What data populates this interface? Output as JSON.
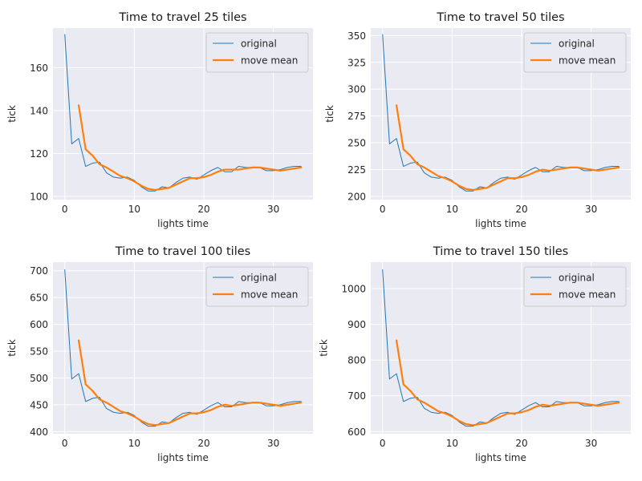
{
  "colors": {
    "background": "#eaeaf2",
    "grid": "#ffffff",
    "original": "#1f77b4",
    "mean": "#ff7f0e"
  },
  "chart_data": [
    {
      "type": "line",
      "title": "Time to travel 25 tiles",
      "xlabel": "lights time",
      "ylabel": "tick",
      "xlim": [
        -1.7,
        35.7
      ],
      "ylim": [
        98.5,
        178.5
      ],
      "xticks": [
        0,
        10,
        20,
        30
      ],
      "yticks": [
        100,
        120,
        140,
        160
      ],
      "legend": "top-right",
      "grid": true,
      "series": [
        {
          "name": "original",
          "x": [
            0,
            1,
            2,
            3,
            4,
            5,
            6,
            7,
            8,
            9,
            10,
            11,
            12,
            13,
            14,
            15,
            16,
            17,
            18,
            19,
            20,
            21,
            22,
            23,
            24,
            25,
            26,
            27,
            28,
            29,
            30,
            31,
            32,
            33,
            34
          ],
          "values": [
            175.5,
            124.5,
            127,
            114,
            115.5,
            116,
            111,
            109,
            108.5,
            109,
            107.5,
            104.5,
            102.5,
            102.5,
            104.5,
            104,
            106.5,
            108.5,
            109,
            108,
            110,
            112,
            113.5,
            111.5,
            111.5,
            114,
            113.5,
            113.5,
            113.5,
            112,
            112,
            112.5,
            113.5,
            114,
            114
          ]
        },
        {
          "name": "move mean",
          "x": [
            2,
            3,
            4,
            5,
            6,
            7,
            8,
            9,
            10,
            11,
            12,
            13,
            14,
            15,
            16,
            17,
            18,
            19,
            20,
            21,
            22,
            23,
            24,
            25,
            26,
            27,
            28,
            29,
            30,
            31,
            32,
            33,
            34
          ],
          "values": [
            142.5,
            122,
            119,
            115,
            113.5,
            111.5,
            109.5,
            108.5,
            107,
            105,
            103.5,
            103,
            103.5,
            104,
            105.5,
            107,
            108.5,
            108.5,
            109,
            110,
            111.5,
            112.5,
            112.5,
            112.5,
            113,
            113.5,
            113.5,
            113,
            112.5,
            112,
            112.5,
            113,
            113.5
          ]
        }
      ]
    },
    {
      "type": "line",
      "title": "Time to travel 50 tiles",
      "xlabel": "lights time",
      "ylabel": "tick",
      "xlim": [
        -1.7,
        35.7
      ],
      "ylim": [
        197,
        357
      ],
      "xticks": [
        0,
        10,
        20,
        30
      ],
      "yticks": [
        200,
        225,
        250,
        275,
        300,
        325,
        350
      ],
      "legend": "top-right",
      "grid": true,
      "series": [
        {
          "name": "original",
          "x": [
            0,
            1,
            2,
            3,
            4,
            5,
            6,
            7,
            8,
            9,
            10,
            11,
            12,
            13,
            14,
            15,
            16,
            17,
            18,
            19,
            20,
            21,
            22,
            23,
            24,
            25,
            26,
            27,
            28,
            29,
            30,
            31,
            32,
            33,
            34
          ],
          "values": [
            351,
            249,
            254,
            228,
            231,
            232,
            222,
            218,
            217,
            218,
            215,
            209,
            205,
            205,
            209,
            208,
            213,
            217,
            218,
            216,
            220,
            224,
            227,
            223,
            223,
            228,
            227,
            227,
            227,
            224,
            224,
            225,
            227,
            228,
            228
          ]
        },
        {
          "name": "move mean",
          "x": [
            2,
            3,
            4,
            5,
            6,
            7,
            8,
            9,
            10,
            11,
            12,
            13,
            14,
            15,
            16,
            17,
            18,
            19,
            20,
            21,
            22,
            23,
            24,
            25,
            26,
            27,
            28,
            29,
            30,
            31,
            32,
            33,
            34
          ],
          "values": [
            285,
            244,
            238,
            230,
            227,
            223,
            219,
            217,
            214,
            210,
            207,
            206,
            207,
            208,
            211,
            214,
            217,
            217,
            218,
            220,
            223,
            225,
            224,
            225,
            226,
            227,
            227,
            226,
            225,
            224,
            225,
            226,
            227
          ]
        }
      ]
    },
    {
      "type": "line",
      "title": "Time to travel 100 tiles",
      "xlabel": "lights time",
      "ylabel": "tick",
      "xlim": [
        -1.7,
        35.7
      ],
      "ylim": [
        396,
        716
      ],
      "xticks": [
        0,
        10,
        20,
        30
      ],
      "yticks": [
        400,
        450,
        500,
        550,
        600,
        650,
        700
      ],
      "legend": "top-right",
      "grid": true,
      "series": [
        {
          "name": "original",
          "x": [
            0,
            1,
            2,
            3,
            4,
            5,
            6,
            7,
            8,
            9,
            10,
            11,
            12,
            13,
            14,
            15,
            16,
            17,
            18,
            19,
            20,
            21,
            22,
            23,
            24,
            25,
            26,
            27,
            28,
            29,
            30,
            31,
            32,
            33,
            34
          ],
          "values": [
            702,
            498,
            508,
            456,
            462,
            464,
            443,
            436,
            434,
            436,
            430,
            418,
            410,
            410,
            418,
            416,
            426,
            434,
            436,
            432,
            440,
            448,
            454,
            446,
            446,
            456,
            454,
            454,
            454,
            448,
            448,
            450,
            454,
            456,
            456
          ]
        },
        {
          "name": "move mean",
          "x": [
            2,
            3,
            4,
            5,
            6,
            7,
            8,
            9,
            10,
            11,
            12,
            13,
            14,
            15,
            16,
            17,
            18,
            19,
            20,
            21,
            22,
            23,
            24,
            25,
            26,
            27,
            28,
            29,
            30,
            31,
            32,
            33,
            34
          ],
          "values": [
            570,
            488,
            476,
            460,
            454,
            446,
            438,
            434,
            428,
            420,
            414,
            412,
            414,
            416,
            422,
            428,
            434,
            434,
            436,
            440,
            446,
            450,
            448,
            450,
            452,
            454,
            454,
            452,
            450,
            448,
            450,
            452,
            454
          ]
        }
      ]
    },
    {
      "type": "line",
      "title": "Time to travel 150 tiles",
      "xlabel": "lights time",
      "ylabel": "tick",
      "xlim": [
        -1.7,
        35.7
      ],
      "ylim": [
        594,
        1074
      ],
      "xticks": [
        0,
        10,
        20,
        30
      ],
      "yticks": [
        600,
        700,
        800,
        900,
        1000
      ],
      "legend": "top-right",
      "grid": true,
      "series": [
        {
          "name": "original",
          "x": [
            0,
            1,
            2,
            3,
            4,
            5,
            6,
            7,
            8,
            9,
            10,
            11,
            12,
            13,
            14,
            15,
            16,
            17,
            18,
            19,
            20,
            21,
            22,
            23,
            24,
            25,
            26,
            27,
            28,
            29,
            30,
            31,
            32,
            33,
            34
          ],
          "values": [
            1053,
            747,
            762,
            684,
            693,
            696,
            665,
            654,
            651,
            654,
            645,
            627,
            615,
            615,
            627,
            624,
            639,
            651,
            654,
            648,
            660,
            672,
            681,
            669,
            669,
            684,
            681,
            681,
            681,
            672,
            672,
            675,
            681,
            684,
            684
          ]
        },
        {
          "name": "move mean",
          "x": [
            2,
            3,
            4,
            5,
            6,
            7,
            8,
            9,
            10,
            11,
            12,
            13,
            14,
            15,
            16,
            17,
            18,
            19,
            20,
            21,
            22,
            23,
            24,
            25,
            26,
            27,
            28,
            29,
            30,
            31,
            32,
            33,
            34
          ],
          "values": [
            855,
            732,
            714,
            690,
            681,
            669,
            657,
            651,
            642,
            630,
            621,
            618,
            621,
            624,
            633,
            642,
            651,
            651,
            654,
            660,
            669,
            675,
            672,
            675,
            678,
            681,
            681,
            678,
            675,
            672,
            675,
            678,
            681
          ]
        }
      ]
    }
  ]
}
